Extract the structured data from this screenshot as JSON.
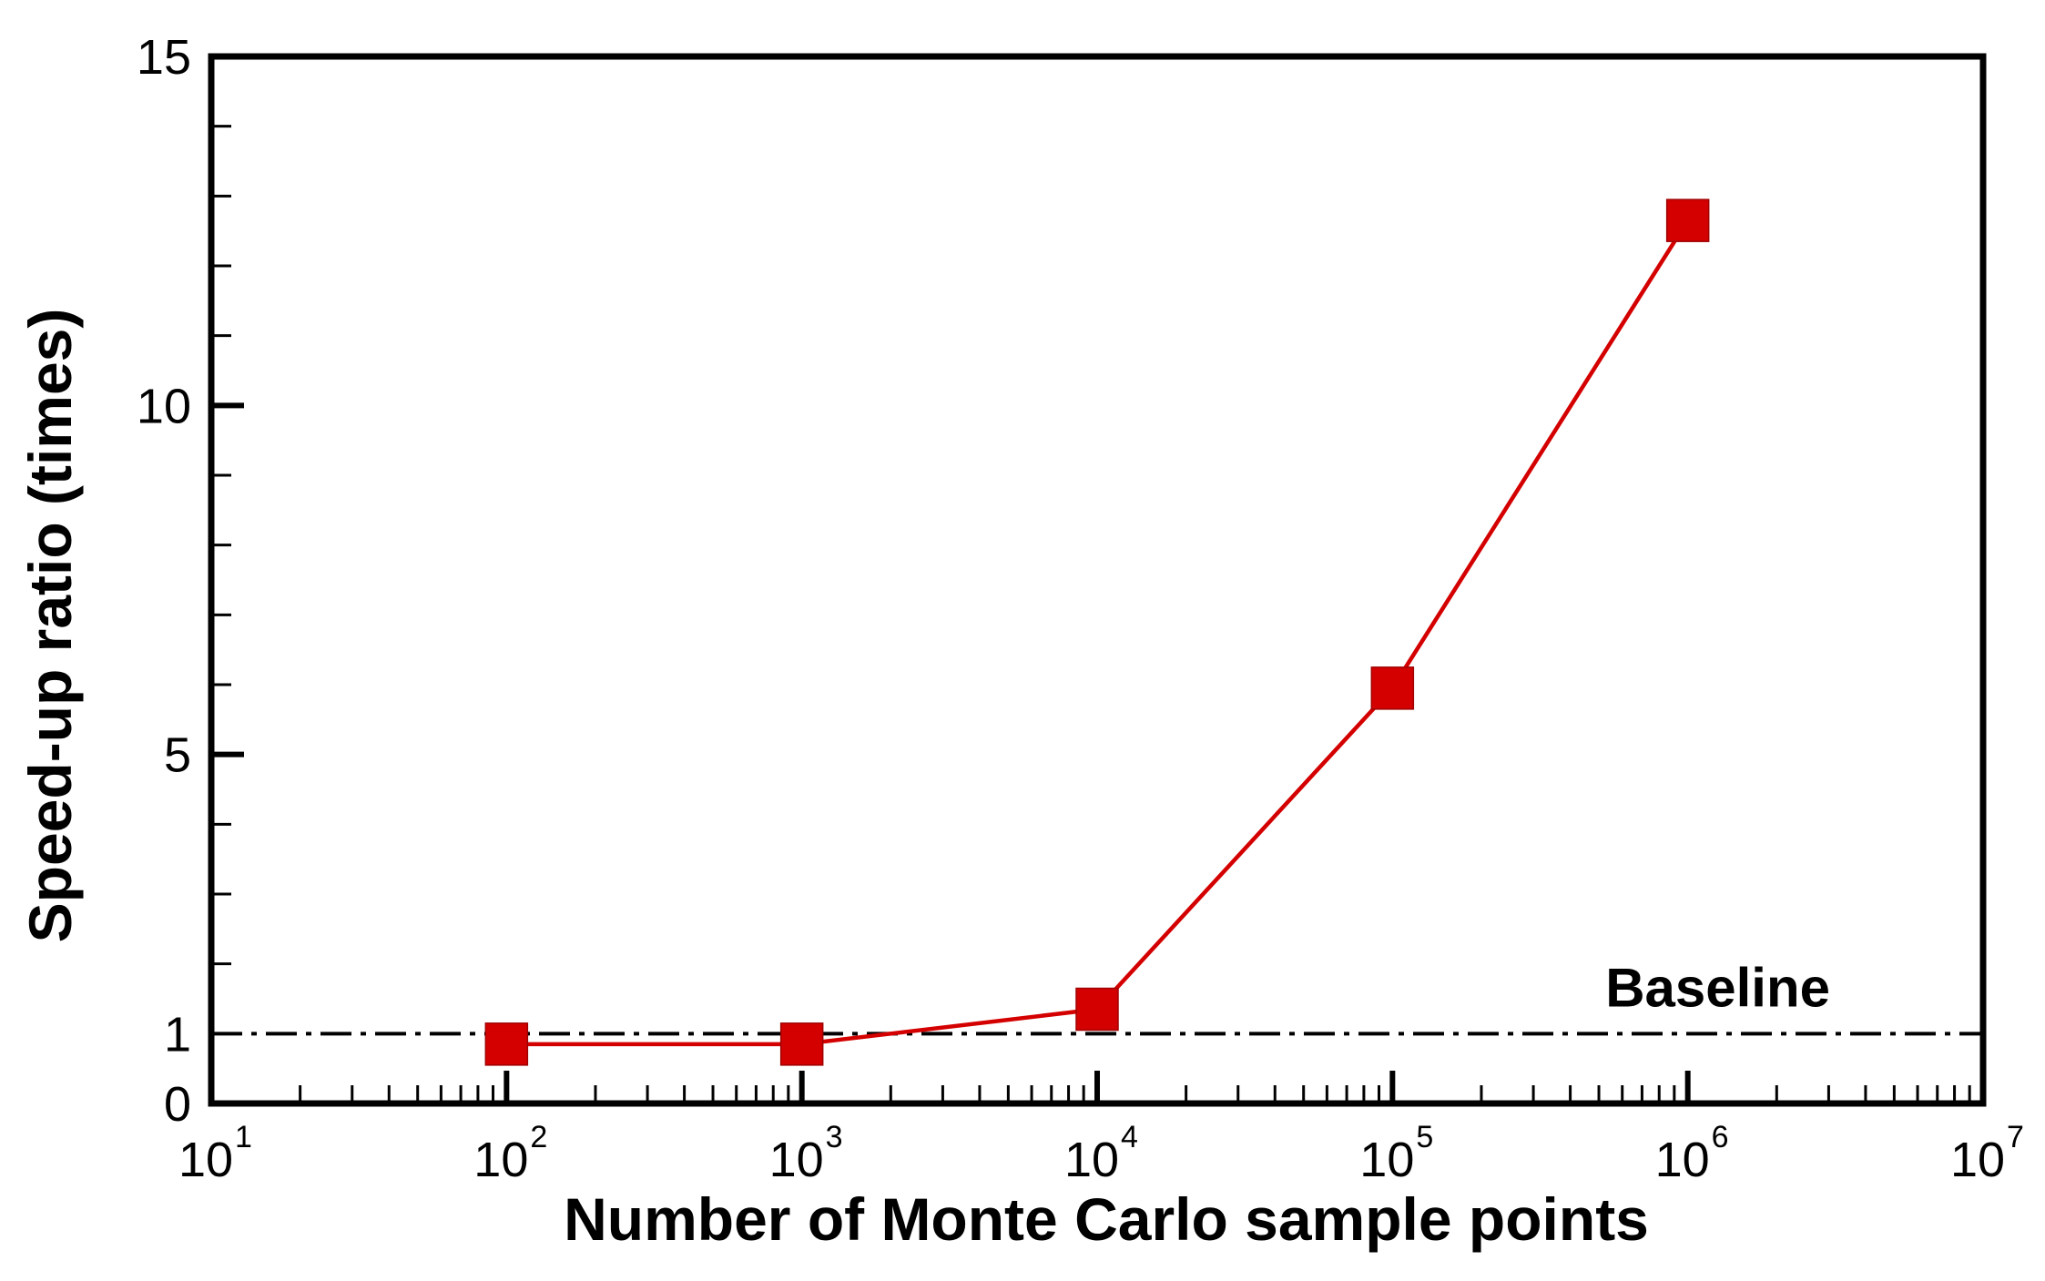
{
  "chart_data": {
    "type": "line",
    "xlabel": "Number of Monte Carlo sample points",
    "ylabel": "Speed-up ratio (times)",
    "x_scale": "log",
    "xlim": [
      10,
      10000000
    ],
    "ylim": [
      0,
      15
    ],
    "x_ticks": [
      {
        "base": "10",
        "exp": "1"
      },
      {
        "base": "10",
        "exp": "2"
      },
      {
        "base": "10",
        "exp": "3"
      },
      {
        "base": "10",
        "exp": "4"
      },
      {
        "base": "10",
        "exp": "5"
      },
      {
        "base": "10",
        "exp": "6"
      },
      {
        "base": "10",
        "exp": "7"
      }
    ],
    "y_ticks": [
      "0",
      "1",
      "5",
      "10",
      "15"
    ],
    "grid": false,
    "series": [
      {
        "x": [
          100,
          1000,
          10000,
          100000,
          1000000
        ],
        "y": [
          0.85,
          0.85,
          1.35,
          5.95,
          12.65
        ],
        "color": "#d40000",
        "marker": "square"
      }
    ],
    "reference_line": {
      "y": 1,
      "style": "dash-dot",
      "color": "#000000",
      "label": "Baseline"
    }
  }
}
